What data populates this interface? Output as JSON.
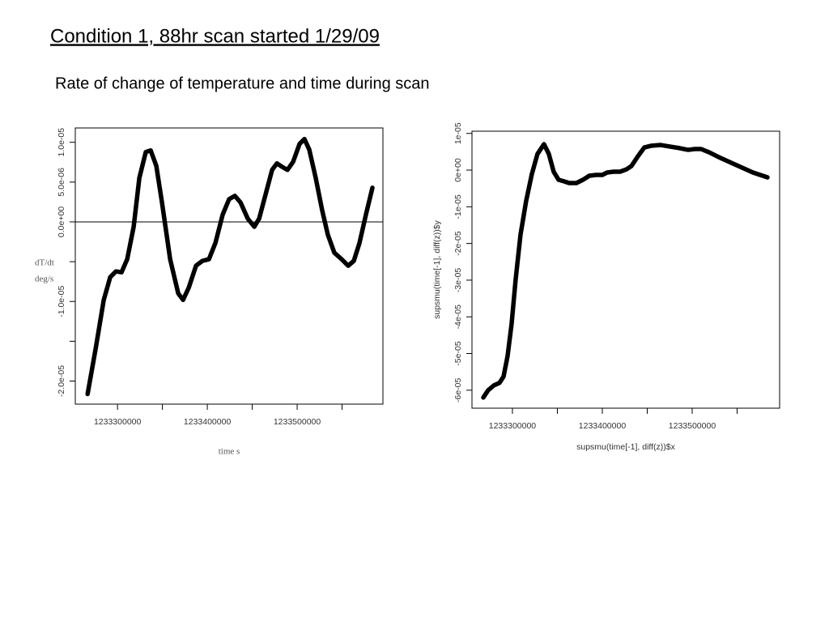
{
  "title": "Condition 1, 88hr scan started 1/29/09",
  "subtitle": "Rate of change of temperature and time during scan",
  "chart_data": [
    {
      "type": "line",
      "color": "#000000",
      "hline": 0,
      "x_label": "time s",
      "y_label": [
        "dT/dt",
        "deg/s"
      ],
      "xlim": [
        1233253000,
        1233595500
      ],
      "ylim": [
        -2.29e-05,
        1.18e-05
      ],
      "xticks": [
        1233300000,
        {
          "value": 1233350000,
          "label": null
        },
        1233400000,
        {
          "value": 1233450000,
          "label": null
        },
        1233500000,
        {
          "value": 1233550000,
          "label": null
        }
      ],
      "yticks": [
        {
          "value": -2e-05,
          "label": "-2.0e-05"
        },
        {
          "value": -1.5e-05,
          "label": null
        },
        {
          "value": -1e-05,
          "label": "-1.0e-05"
        },
        {
          "value": -5e-06,
          "label": null
        },
        {
          "value": 0,
          "label": "0.0e+00"
        },
        {
          "value": 5e-06,
          "label": "5.0e-06"
        },
        {
          "value": 1e-05,
          "label": "1.0e-05"
        }
      ],
      "x": [
        1233266700,
        1233275700,
        1233284700,
        1233291900,
        1233298200,
        1233304500,
        1233310800,
        1233318000,
        1233324300,
        1233331500,
        1233336900,
        1233343200,
        1233349500,
        1233358600,
        1233367600,
        1233373000,
        1233379300,
        1233387400,
        1233394600,
        1233401800,
        1233409000,
        1233417100,
        1233424300,
        1233430600,
        1233436900,
        1233445000,
        1233452300,
        1233457700,
        1233464900,
        1233472100,
        1233477500,
        1233482900,
        1233489200,
        1233495500,
        1233502700,
        1233508100,
        1233513500,
        1233520700,
        1233527900,
        1233534200,
        1233541400,
        1233549500,
        1233556800,
        1233563100,
        1233569400,
        1233576600,
        1233583800
      ],
      "values": [
        -2.163e-05,
        -1.592e-05,
        -9.8e-06,
        -6.94e-06,
        -6.22e-06,
        -6.33e-06,
        -4.69e-06,
        -6.1e-07,
        5.51e-06,
        8.78e-06,
        8.98e-06,
        7.04e-06,
        2.45e-06,
        -4.69e-06,
        -8.98e-06,
        -9.8e-06,
        -8.27e-06,
        -5.51e-06,
        -4.9e-06,
        -4.69e-06,
        -2.65e-06,
        9.2e-07,
        2.86e-06,
        3.27e-06,
        2.45e-06,
        4.1e-07,
        -6.1e-07,
        4.1e-07,
        3.47e-06,
        6.53e-06,
        7.35e-06,
        6.94e-06,
        6.53e-06,
        7.55e-06,
        9.8e-06,
        1.041e-05,
        9.08e-06,
        5.51e-06,
        1.43e-06,
        -1.63e-06,
        -3.88e-06,
        -4.69e-06,
        -5.51e-06,
        -4.9e-06,
        -2.65e-06,
        9.2e-07,
        4.29e-06
      ]
    },
    {
      "type": "line",
      "color": "#000000",
      "x_label": "supsmu(time[-1], diff(z))$x",
      "y_label": [
        "supsmu(time[-1], diff(z))$y"
      ],
      "xlim": [
        1233255000,
        1233597300
      ],
      "ylim": [
        -6.49e-05,
        1.06e-05
      ],
      "xticks": [
        1233300000,
        {
          "value": 1233350000,
          "label": null
        },
        1233400000,
        {
          "value": 1233450000,
          "label": null
        },
        1233500000,
        {
          "value": 1233550000,
          "label": null
        }
      ],
      "yticks": [
        {
          "value": -6e-05,
          "label": "-6e-05"
        },
        {
          "value": -5e-05,
          "label": "-5e-05"
        },
        {
          "value": -4e-05,
          "label": "-4e-05"
        },
        {
          "value": -3e-05,
          "label": "-3e-05"
        },
        {
          "value": -2e-05,
          "label": "-2e-05"
        },
        {
          "value": -1e-05,
          "label": "-1e-05"
        },
        {
          "value": 0,
          "label": "0e+00"
        },
        {
          "value": 1e-05,
          "label": "1e-05"
        }
      ],
      "x": [
        1233267600,
        1233273000,
        1233279300,
        1233285600,
        1233290100,
        1233294600,
        1233299100,
        1233303600,
        1233309000,
        1233315300,
        1233321600,
        1233327900,
        1233335100,
        1233340500,
        1233345900,
        1233351400,
        1233357700,
        1233363100,
        1233371200,
        1233378400,
        1233385600,
        1233392800,
        1233400000,
        1233405400,
        1233412600,
        1233419800,
        1233427000,
        1233432400,
        1233439600,
        1233446800,
        1233454100,
        1233464900,
        1233475700,
        1233486500,
        1233495500,
        1233502700,
        1233509900,
        1233518900,
        1233531500,
        1233549500,
        1233567600,
        1233583800
      ],
      "values": [
        -6.2e-05,
        -6e-05,
        -5.87e-05,
        -5.8e-05,
        -5.63e-05,
        -5.07e-05,
        -4.19e-05,
        -2.98e-05,
        -1.76e-05,
        -8.38e-06,
        -1.1e-06,
        4.41e-06,
        7.06e-06,
        4.41e-06,
        -4.4e-07,
        -2.65e-06,
        -3.09e-06,
        -3.53e-06,
        -3.53e-06,
        -2.65e-06,
        -1.54e-06,
        -1.32e-06,
        -1.32e-06,
        -6.6e-07,
        -4.4e-07,
        -4.4e-07,
        2.2e-07,
        1.1e-06,
        3.75e-06,
        6.18e-06,
        6.62e-06,
        6.84e-06,
        6.4e-06,
        5.96e-06,
        5.51e-06,
        5.74e-06,
        5.74e-06,
        4.85e-06,
        3.31e-06,
        1.32e-06,
        -6.6e-07,
        -1.99e-06
      ]
    }
  ]
}
